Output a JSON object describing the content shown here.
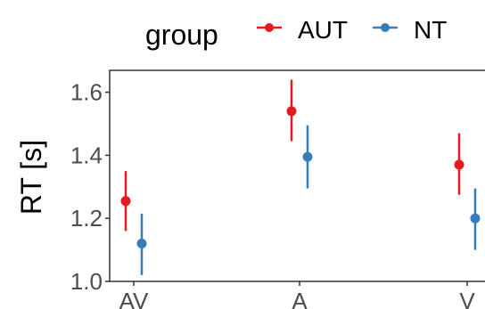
{
  "chart_data": {
    "type": "scatter",
    "ylabel": "RT [s]",
    "xlabel": "",
    "categories": [
      "AV",
      "A",
      "V"
    ],
    "y_ticks": [
      "1.0",
      "1.2",
      "1.4",
      "1.6"
    ],
    "ylim": [
      1.0,
      1.67
    ],
    "legend": {
      "title": "group",
      "position": "top"
    },
    "series": [
      {
        "name": "AUT",
        "color": "#e41a1c",
        "values": [
          1.255,
          1.54,
          1.37
        ],
        "lower": [
          1.16,
          1.445,
          1.275
        ],
        "upper": [
          1.35,
          1.64,
          1.47
        ]
      },
      {
        "name": "NT",
        "color": "#377eb8",
        "values": [
          1.12,
          1.395,
          1.2
        ],
        "lower": [
          1.02,
          1.295,
          1.1
        ],
        "upper": [
          1.215,
          1.495,
          1.295
        ]
      }
    ]
  }
}
